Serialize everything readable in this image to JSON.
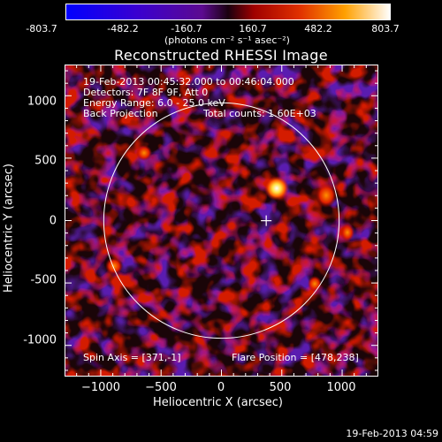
{
  "colorbar": {
    "ticks": [
      "-803.7",
      "-482.2",
      "-160.7",
      "160.7",
      "482.2",
      "803.7"
    ],
    "units": "(photons cm⁻² s⁻¹ asec⁻²)"
  },
  "title": "Reconstructed RHESSI Image",
  "info": {
    "time_range": "19-Feb-2013 00:45:32.000 to 00:46:04.000",
    "detectors": "Detectors: 7F 8F 9F, Att 0",
    "energy": "Energy Range: 6.0 - 25.0 keV",
    "method": "Back Projection",
    "counts": "Total counts: 1.60E+03",
    "spin_axis": "Spin Axis = [371,-1]",
    "flare_position": "Flare Position = [478,238]"
  },
  "timestamp": "19-Feb-2013 04:59",
  "chart_data": {
    "type": "heatmap",
    "title": "Reconstructed RHESSI Image",
    "xlabel": "Heliocentric X (arcsec)",
    "ylabel": "Heliocentric Y (arcsec)",
    "xlim": [
      -1300,
      1300
    ],
    "ylim": [
      -1250,
      1250
    ],
    "x_ticks": [
      -1000,
      -500,
      0,
      500,
      1000
    ],
    "y_ticks": [
      1000,
      500,
      0,
      -500,
      -1000
    ],
    "x_tick_labels": [
      "−1000",
      "−500",
      "0",
      "500",
      "1000"
    ],
    "y_tick_labels": [
      "1000",
      "500",
      "0",
      "-500",
      "-1000"
    ],
    "color_range": [
      -803.7,
      803.7
    ],
    "solar_limb_radius": 975,
    "flare_position": [
      478,
      238
    ],
    "spin_axis": [
      371,
      -1
    ],
    "brightest_source": [
      470,
      270
    ],
    "colors": {
      "background": "#000000",
      "limb": "#ffffff"
    }
  }
}
